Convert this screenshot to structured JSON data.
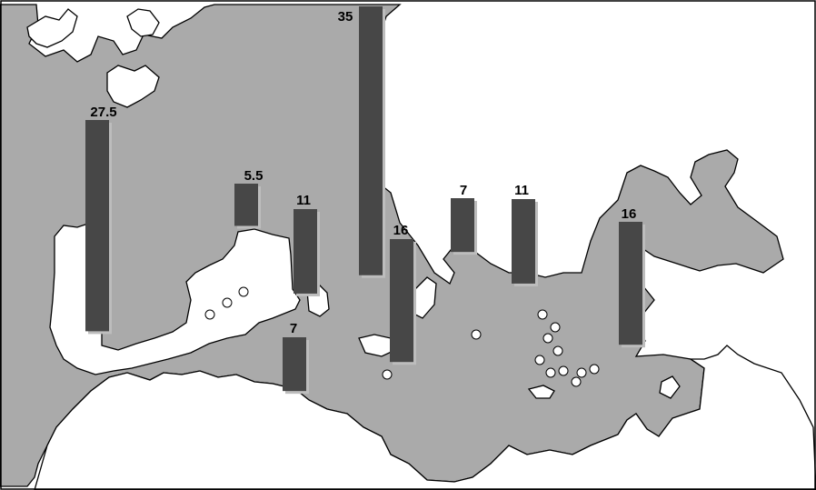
{
  "colors": {
    "sea": "#aaaaaa",
    "land": "#ffffff",
    "bar": "#474747",
    "outline": "#000000"
  },
  "bars": [
    {
      "id": "iberia",
      "label": "27.5",
      "value": 27.5
    },
    {
      "id": "gulf-of-lion",
      "label": "5.5",
      "value": 5.5
    },
    {
      "id": "corsica-sardinia",
      "label": "11",
      "value": 11
    },
    {
      "id": "north-africa-west",
      "label": "7",
      "value": 7
    },
    {
      "id": "italy-north",
      "label": "35",
      "value": 35
    },
    {
      "id": "italy-south",
      "label": "16",
      "value": 16
    },
    {
      "id": "adriatic-east",
      "label": "7",
      "value": 7
    },
    {
      "id": "greece",
      "label": "11",
      "value": 11
    },
    {
      "id": "anatolia",
      "label": "16",
      "value": 16
    }
  ]
}
